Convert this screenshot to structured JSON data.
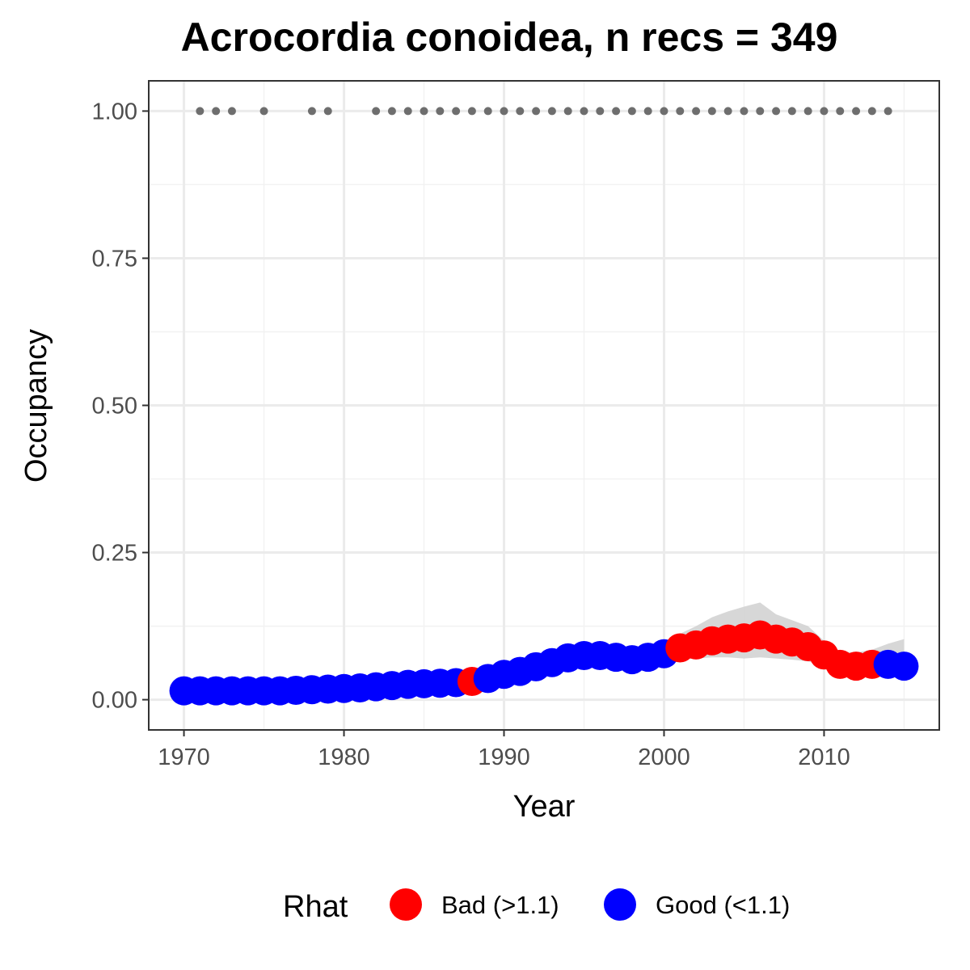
{
  "chart_data": {
    "type": "scatter",
    "title": "Acrocordia conoidea, n recs = 349",
    "xlabel": "Year",
    "ylabel": "Occupancy",
    "xlim": [
      1967.85,
      2017.15
    ],
    "ylim": [
      -0.05,
      1.05
    ],
    "x_ticks": [
      1970,
      1980,
      1990,
      2000,
      2010
    ],
    "x_tick_labels": [
      "1970",
      "1980",
      "1990",
      "2000",
      "2010"
    ],
    "y_ticks": [
      0,
      0.25,
      0.5,
      0.75,
      1.0
    ],
    "y_tick_labels": [
      "0.00",
      "0.25",
      "0.50",
      "0.75",
      "1.00"
    ],
    "grid": true,
    "legend": {
      "title": "Rhat",
      "position": "bottom",
      "entries": [
        {
          "label": "Bad (>1.1)",
          "color": "#ff0000"
        },
        {
          "label": "Good (<1.1)",
          "color": "#0000ff"
        }
      ]
    },
    "colors": {
      "Bad": "#ff0000",
      "Good": "#0000ff",
      "records": "#6e6e6e",
      "ribbon": "#d3d3d3"
    },
    "record_years": [
      1971,
      1972,
      1973,
      1975,
      1978,
      1979,
      1982,
      1983,
      1984,
      1985,
      1986,
      1987,
      1988,
      1989,
      1990,
      1991,
      1992,
      1993,
      1994,
      1995,
      1996,
      1997,
      1998,
      1999,
      2000,
      2001,
      2002,
      2003,
      2004,
      2005,
      2006,
      2007,
      2008,
      2009,
      2010,
      2011,
      2012,
      2013,
      2014
    ],
    "record_value": 1.0,
    "series": [
      {
        "x": 1970,
        "y": 0.015,
        "lower": 0.01,
        "upper": 0.02,
        "rhat": "Good"
      },
      {
        "x": 1971,
        "y": 0.015,
        "lower": 0.01,
        "upper": 0.02,
        "rhat": "Good"
      },
      {
        "x": 1972,
        "y": 0.015,
        "lower": 0.01,
        "upper": 0.02,
        "rhat": "Good"
      },
      {
        "x": 1973,
        "y": 0.015,
        "lower": 0.01,
        "upper": 0.02,
        "rhat": "Good"
      },
      {
        "x": 1974,
        "y": 0.015,
        "lower": 0.01,
        "upper": 0.02,
        "rhat": "Good"
      },
      {
        "x": 1975,
        "y": 0.015,
        "lower": 0.01,
        "upper": 0.02,
        "rhat": "Good"
      },
      {
        "x": 1976,
        "y": 0.015,
        "lower": 0.01,
        "upper": 0.02,
        "rhat": "Good"
      },
      {
        "x": 1977,
        "y": 0.016,
        "lower": 0.011,
        "upper": 0.021,
        "rhat": "Good"
      },
      {
        "x": 1978,
        "y": 0.017,
        "lower": 0.012,
        "upper": 0.022,
        "rhat": "Good"
      },
      {
        "x": 1979,
        "y": 0.018,
        "lower": 0.013,
        "upper": 0.023,
        "rhat": "Good"
      },
      {
        "x": 1980,
        "y": 0.019,
        "lower": 0.014,
        "upper": 0.024,
        "rhat": "Good"
      },
      {
        "x": 1981,
        "y": 0.02,
        "lower": 0.015,
        "upper": 0.025,
        "rhat": "Good"
      },
      {
        "x": 1982,
        "y": 0.022,
        "lower": 0.017,
        "upper": 0.027,
        "rhat": "Good"
      },
      {
        "x": 1983,
        "y": 0.024,
        "lower": 0.019,
        "upper": 0.029,
        "rhat": "Good"
      },
      {
        "x": 1984,
        "y": 0.026,
        "lower": 0.021,
        "upper": 0.031,
        "rhat": "Good"
      },
      {
        "x": 1985,
        "y": 0.027,
        "lower": 0.022,
        "upper": 0.032,
        "rhat": "Good"
      },
      {
        "x": 1986,
        "y": 0.028,
        "lower": 0.023,
        "upper": 0.034,
        "rhat": "Good"
      },
      {
        "x": 1987,
        "y": 0.029,
        "lower": 0.024,
        "upper": 0.035,
        "rhat": "Good"
      },
      {
        "x": 1988,
        "y": 0.031,
        "lower": 0.025,
        "upper": 0.038,
        "rhat": "Bad"
      },
      {
        "x": 1989,
        "y": 0.036,
        "lower": 0.029,
        "upper": 0.043,
        "rhat": "Good"
      },
      {
        "x": 1990,
        "y": 0.043,
        "lower": 0.035,
        "upper": 0.052,
        "rhat": "Good"
      },
      {
        "x": 1991,
        "y": 0.048,
        "lower": 0.039,
        "upper": 0.058,
        "rhat": "Good"
      },
      {
        "x": 1992,
        "y": 0.056,
        "lower": 0.045,
        "upper": 0.067,
        "rhat": "Good"
      },
      {
        "x": 1993,
        "y": 0.063,
        "lower": 0.051,
        "upper": 0.075,
        "rhat": "Good"
      },
      {
        "x": 1994,
        "y": 0.071,
        "lower": 0.058,
        "upper": 0.084,
        "rhat": "Good"
      },
      {
        "x": 1995,
        "y": 0.075,
        "lower": 0.062,
        "upper": 0.088,
        "rhat": "Good"
      },
      {
        "x": 1996,
        "y": 0.075,
        "lower": 0.061,
        "upper": 0.088,
        "rhat": "Good"
      },
      {
        "x": 1997,
        "y": 0.072,
        "lower": 0.058,
        "upper": 0.086,
        "rhat": "Good"
      },
      {
        "x": 1998,
        "y": 0.068,
        "lower": 0.055,
        "upper": 0.084,
        "rhat": "Good"
      },
      {
        "x": 1999,
        "y": 0.072,
        "lower": 0.058,
        "upper": 0.09,
        "rhat": "Good"
      },
      {
        "x": 2000,
        "y": 0.078,
        "lower": 0.062,
        "upper": 0.098,
        "rhat": "Good"
      },
      {
        "x": 2001,
        "y": 0.088,
        "lower": 0.068,
        "upper": 0.112,
        "rhat": "Bad"
      },
      {
        "x": 2002,
        "y": 0.093,
        "lower": 0.07,
        "upper": 0.125,
        "rhat": "Bad"
      },
      {
        "x": 2003,
        "y": 0.1,
        "lower": 0.072,
        "upper": 0.14,
        "rhat": "Bad"
      },
      {
        "x": 2004,
        "y": 0.103,
        "lower": 0.072,
        "upper": 0.15,
        "rhat": "Bad"
      },
      {
        "x": 2005,
        "y": 0.105,
        "lower": 0.07,
        "upper": 0.158,
        "rhat": "Bad"
      },
      {
        "x": 2006,
        "y": 0.11,
        "lower": 0.072,
        "upper": 0.165,
        "rhat": "Bad"
      },
      {
        "x": 2007,
        "y": 0.103,
        "lower": 0.07,
        "upper": 0.145,
        "rhat": "Bad"
      },
      {
        "x": 2008,
        "y": 0.098,
        "lower": 0.068,
        "upper": 0.135,
        "rhat": "Bad"
      },
      {
        "x": 2009,
        "y": 0.09,
        "lower": 0.065,
        "upper": 0.125,
        "rhat": "Bad"
      },
      {
        "x": 2010,
        "y": 0.076,
        "lower": 0.058,
        "upper": 0.1,
        "rhat": "Bad"
      },
      {
        "x": 2011,
        "y": 0.06,
        "lower": 0.045,
        "upper": 0.082,
        "rhat": "Bad"
      },
      {
        "x": 2012,
        "y": 0.057,
        "lower": 0.042,
        "upper": 0.08,
        "rhat": "Bad"
      },
      {
        "x": 2013,
        "y": 0.06,
        "lower": 0.043,
        "upper": 0.085,
        "rhat": "Bad"
      },
      {
        "x": 2014,
        "y": 0.06,
        "lower": 0.04,
        "upper": 0.095,
        "rhat": "Good"
      },
      {
        "x": 2015,
        "y": 0.057,
        "lower": 0.035,
        "upper": 0.103,
        "rhat": "Good"
      }
    ]
  }
}
